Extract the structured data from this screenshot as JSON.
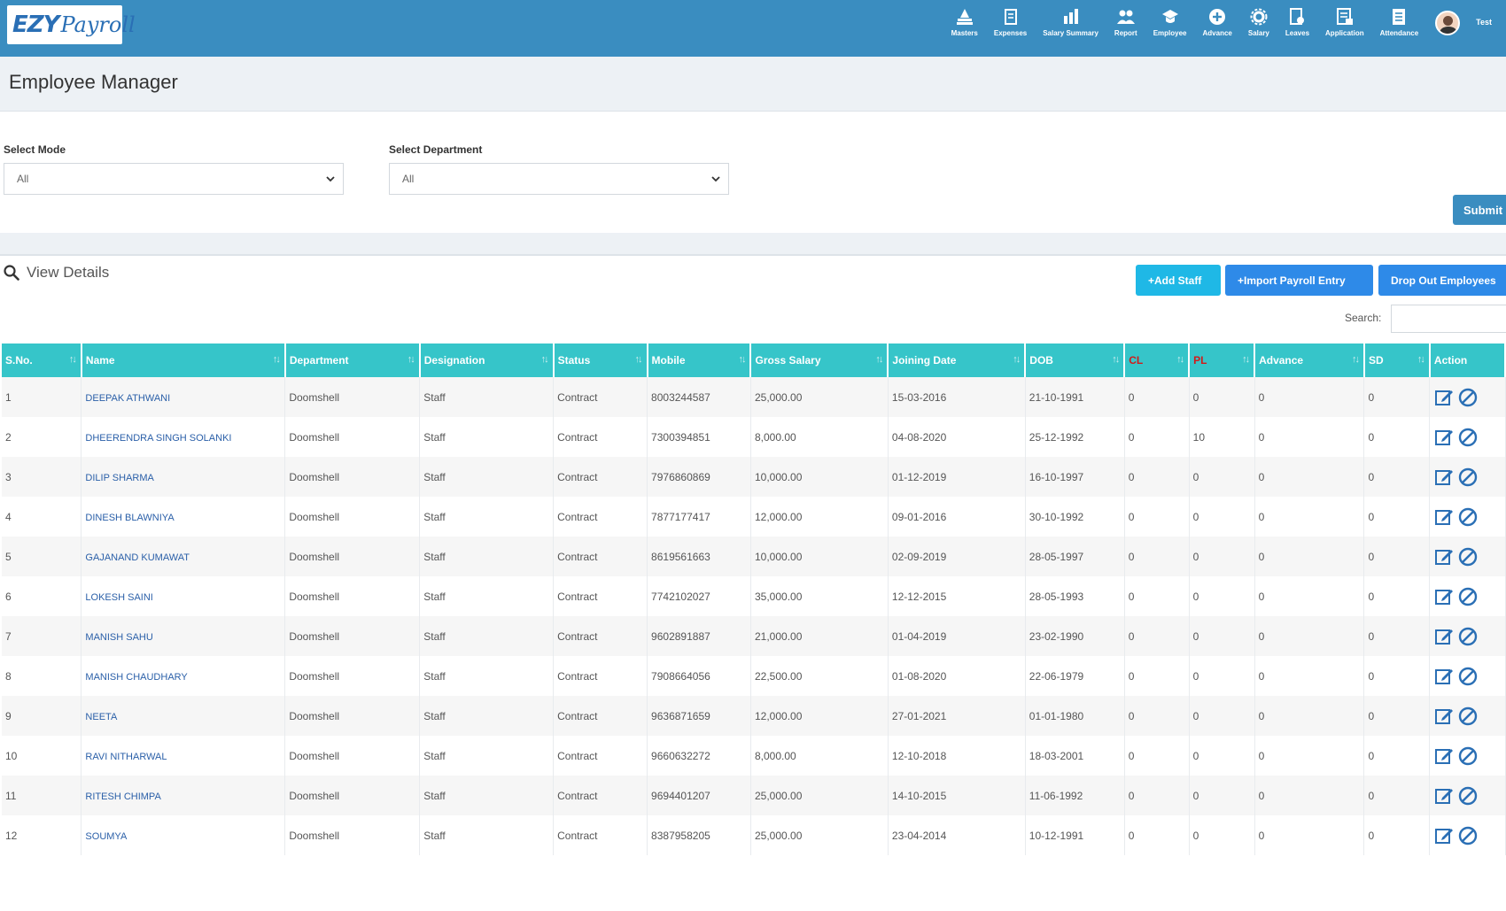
{
  "app": {
    "logo_brand": "EZY",
    "logo_suffix": "Payroll",
    "user_label": "Test"
  },
  "nav": [
    {
      "label": "Masters",
      "icon": "masters-icon"
    },
    {
      "label": "Expenses",
      "icon": "expenses-icon"
    },
    {
      "label": "Salary Summary",
      "icon": "salary-summary-icon"
    },
    {
      "label": "Report",
      "icon": "report-icon"
    },
    {
      "label": "Employee",
      "icon": "employee-icon"
    },
    {
      "label": "Advance",
      "icon": "advance-icon"
    },
    {
      "label": "Salary",
      "icon": "salary-icon"
    },
    {
      "label": "Leaves",
      "icon": "leaves-icon"
    },
    {
      "label": "Application",
      "icon": "application-icon"
    },
    {
      "label": "Attendance",
      "icon": "attendance-icon"
    }
  ],
  "page": {
    "title": "Employee Manager"
  },
  "filters": {
    "mode_label": "Select Mode",
    "mode_value": "All",
    "department_label": "Select Department",
    "department_value": "All",
    "submit_label": "Submit"
  },
  "details": {
    "heading": "View Details",
    "add_staff_label": "+Add Staff",
    "import_label": "+Import Payroll Entry",
    "dropout_label": "Drop Out Employees",
    "search_label": "Search:"
  },
  "table": {
    "columns": [
      "S.No.",
      "Name",
      "Department",
      "Designation",
      "Status",
      "Mobile",
      "Gross Salary",
      "Joining Date",
      "DOB",
      "CL",
      "PL",
      "Advance",
      "SD",
      "Action"
    ],
    "rows": [
      [
        "1",
        "DEEPAK ATHWANI",
        "Doomshell",
        "Staff",
        "Contract",
        "8003244587",
        "25,000.00",
        "15-03-2016",
        "21-10-1991",
        "0",
        "0",
        "0",
        "0"
      ],
      [
        "2",
        "DHEERENDRA SINGH SOLANKI",
        "Doomshell",
        "Staff",
        "Contract",
        "7300394851",
        "8,000.00",
        "04-08-2020",
        "25-12-1992",
        "0",
        "10",
        "0",
        "0"
      ],
      [
        "3",
        "DILIP SHARMA",
        "Doomshell",
        "Staff",
        "Contract",
        "7976860869",
        "10,000.00",
        "01-12-2019",
        "16-10-1997",
        "0",
        "0",
        "0",
        "0"
      ],
      [
        "4",
        "DINESH BLAWNIYA",
        "Doomshell",
        "Staff",
        "Contract",
        "7877177417",
        "12,000.00",
        "09-01-2016",
        "30-10-1992",
        "0",
        "0",
        "0",
        "0"
      ],
      [
        "5",
        "GAJANAND KUMAWAT",
        "Doomshell",
        "Staff",
        "Contract",
        "8619561663",
        "10,000.00",
        "02-09-2019",
        "28-05-1997",
        "0",
        "0",
        "0",
        "0"
      ],
      [
        "6",
        "LOKESH SAINI",
        "Doomshell",
        "Staff",
        "Contract",
        "7742102027",
        "35,000.00",
        "12-12-2015",
        "28-05-1993",
        "0",
        "0",
        "0",
        "0"
      ],
      [
        "7",
        "MANISH SAHU",
        "Doomshell",
        "Staff",
        "Contract",
        "9602891887",
        "21,000.00",
        "01-04-2019",
        "23-02-1990",
        "0",
        "0",
        "0",
        "0"
      ],
      [
        "8",
        "MANISH CHAUDHARY",
        "Doomshell",
        "Staff",
        "Contract",
        "7908664056",
        "22,500.00",
        "01-08-2020",
        "22-06-1979",
        "0",
        "0",
        "0",
        "0"
      ],
      [
        "9",
        "NEETA",
        "Doomshell",
        "Staff",
        "Contract",
        "9636871659",
        "12,000.00",
        "27-01-2021",
        "01-01-1980",
        "0",
        "0",
        "0",
        "0"
      ],
      [
        "10",
        "RAVI NITHARWAL",
        "Doomshell",
        "Staff",
        "Contract",
        "9660632272",
        "8,000.00",
        "12-10-2018",
        "18-03-2001",
        "0",
        "0",
        "0",
        "0"
      ],
      [
        "11",
        "RITESH CHIMPA",
        "Doomshell",
        "Staff",
        "Contract",
        "9694401207",
        "25,000.00",
        "14-10-2015",
        "11-06-1992",
        "0",
        "0",
        "0",
        "0"
      ],
      [
        "12",
        "SOUMYA",
        "Doomshell",
        "Staff",
        "Contract",
        "8387958205",
        "25,000.00",
        "23-04-2014",
        "10-12-1991",
        "0",
        "0",
        "0",
        "0"
      ]
    ]
  },
  "colors": {
    "topbar": "#3a8dc0",
    "table_header": "#36c5c9",
    "add_button": "#1fb8e6",
    "primary_button": "#2e8ae8",
    "leave_header_text": "#d11a1a"
  }
}
